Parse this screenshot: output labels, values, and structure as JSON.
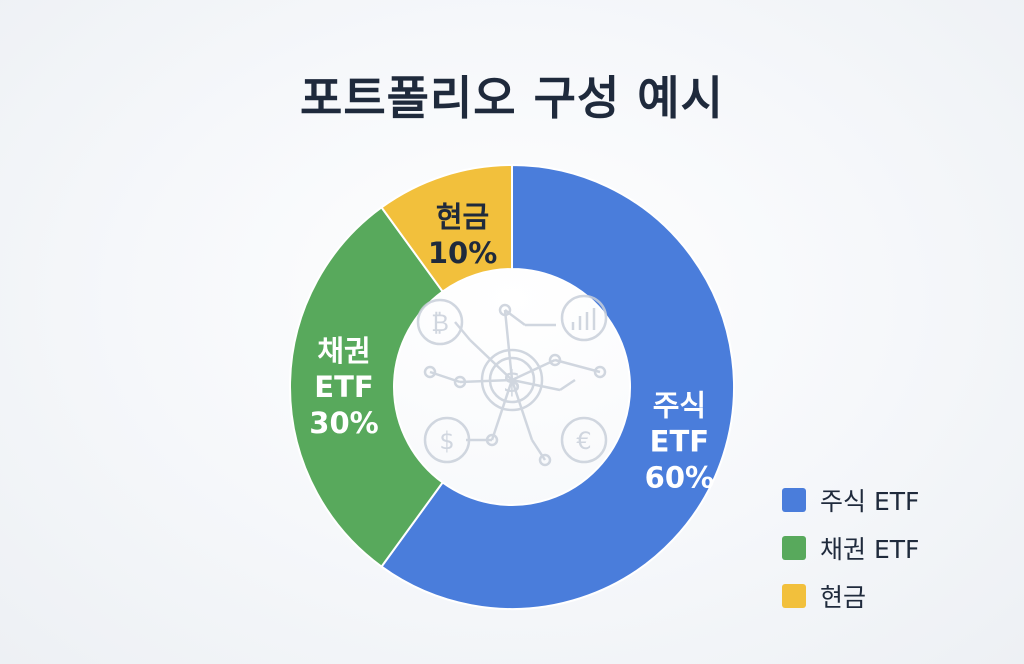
{
  "title": "포트폴리오 구성 예시",
  "chart_data": {
    "type": "pie",
    "donut": true,
    "categories": [
      "주식 ETF",
      "채권 ETF",
      "현금"
    ],
    "values": [
      60,
      30,
      10
    ],
    "slice_labels": [
      [
        "주식",
        "ETF",
        "60%"
      ],
      [
        "채권",
        "ETF",
        "30%"
      ],
      [
        "현금",
        "10%"
      ]
    ],
    "colors": [
      "#4a7ddb",
      "#58a95c",
      "#f2c03c"
    ],
    "legend_position": "bottom-right"
  },
  "legend": {
    "items": [
      {
        "label": "주식 ETF",
        "color": "#4a7ddb"
      },
      {
        "label": "채권 ETF",
        "color": "#58a95c"
      },
      {
        "label": "현금",
        "color": "#f2c03c"
      }
    ]
  },
  "center_icons": [
    "dollar-icon",
    "euro-icon",
    "dollar-icon",
    "bitcoin-icon",
    "bar-chart-icon",
    "network-icon"
  ]
}
